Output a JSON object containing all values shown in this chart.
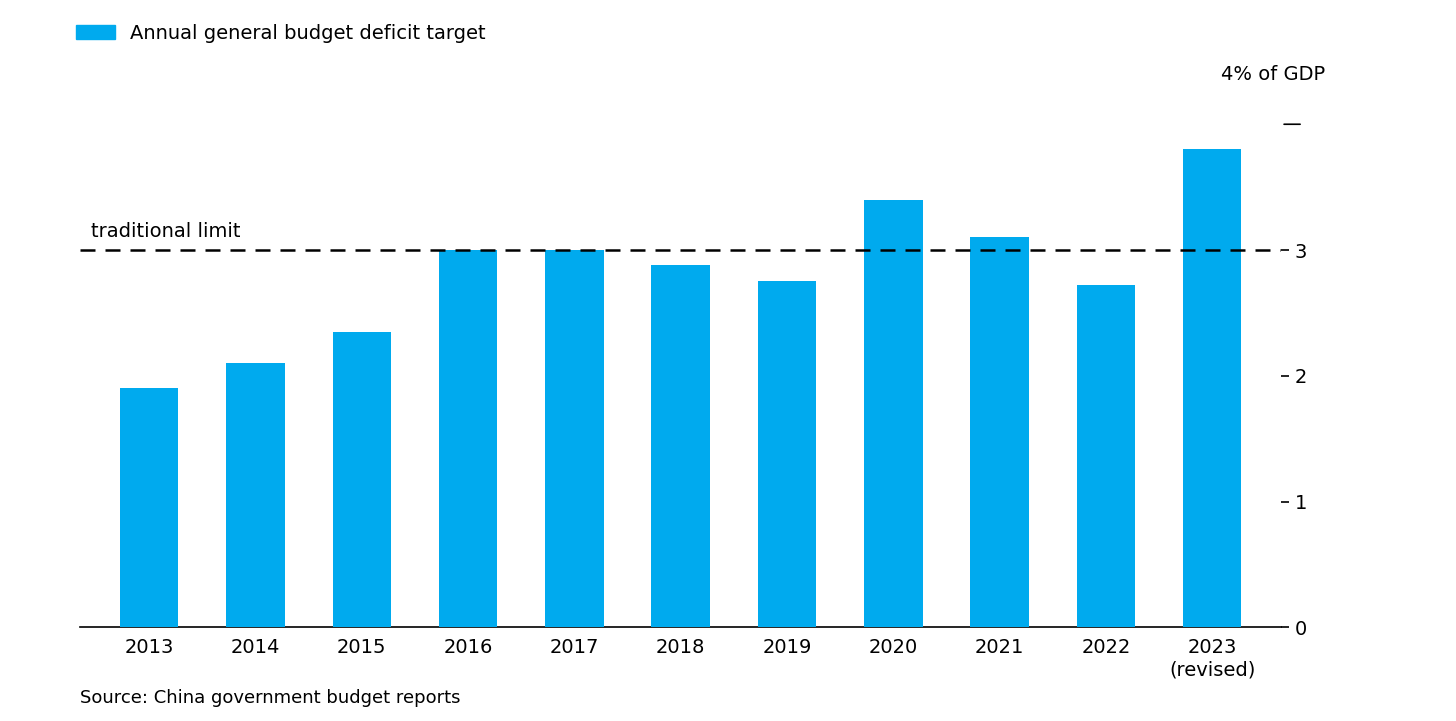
{
  "years": [
    "2013",
    "2014",
    "2015",
    "2016",
    "2017",
    "2018",
    "2019",
    "2020",
    "2021",
    "2022",
    "2023\n(revised)"
  ],
  "values": [
    1.9,
    2.1,
    2.35,
    3.0,
    3.0,
    2.88,
    2.75,
    3.4,
    3.1,
    2.72,
    3.8
  ],
  "bar_color": "#00AAEE",
  "traditional_limit": 3.0,
  "traditional_limit_label": "traditional limit",
  "y_top_annotation": "4% of GDP",
  "ylim_min": 0,
  "ylim_max": 4.3,
  "yticks": [
    0,
    1,
    2,
    3
  ],
  "legend_label": "Annual general budget deficit target",
  "source_text": "Source: China government budget reports",
  "background_color": "#FFFFFF",
  "legend_fontsize": 14,
  "tick_fontsize": 14,
  "annotation_fontsize": 14,
  "source_fontsize": 13,
  "bar_width": 0.55
}
